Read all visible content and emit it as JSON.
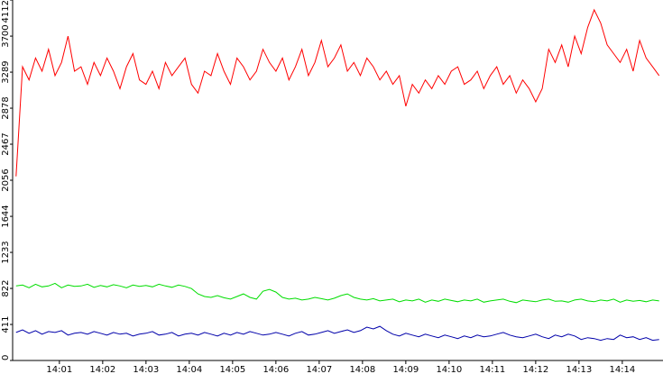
{
  "chart_data": {
    "type": "line",
    "x": [
      0,
      0.15,
      0.3,
      0.45,
      0.6,
      0.75,
      0.9,
      1.05,
      1.2,
      1.35,
      1.5,
      1.65,
      1.8,
      1.95,
      2.1,
      2.25,
      2.4,
      2.55,
      2.7,
      2.85,
      3,
      3.15,
      3.3,
      3.45,
      3.6,
      3.75,
      3.9,
      4.05,
      4.2,
      4.35,
      4.5,
      4.65,
      4.8,
      4.95,
      5.1,
      5.25,
      5.4,
      5.55,
      5.7,
      5.85,
      6,
      6.15,
      6.3,
      6.45,
      6.6,
      6.75,
      6.9,
      7.05,
      7.2,
      7.35,
      7.5,
      7.65,
      7.8,
      7.95,
      8.1,
      8.25,
      8.4,
      8.55,
      8.7,
      8.85,
      9,
      9.15,
      9.3,
      9.45,
      9.6,
      9.75,
      9.9,
      10.05,
      10.2,
      10.35,
      10.5,
      10.65,
      10.8,
      10.95,
      11.1,
      11.25,
      11.4,
      11.55,
      11.7,
      11.85,
      12,
      12.15,
      12.3,
      12.45,
      12.6,
      12.75,
      12.9,
      13.05,
      13.2,
      13.35,
      13.5,
      13.65,
      13.8,
      13.95,
      14.1,
      14.25,
      14.4,
      14.55,
      14.7,
      14.85
    ],
    "series": [
      {
        "color": "#ff0000",
        "values": [
          2100,
          3350,
          3200,
          3450,
          3300,
          3550,
          3250,
          3400,
          3700,
          3300,
          3350,
          3150,
          3400,
          3250,
          3450,
          3300,
          3100,
          3350,
          3500,
          3200,
          3150,
          3300,
          3100,
          3400,
          3250,
          3350,
          3450,
          3150,
          3050,
          3300,
          3250,
          3500,
          3300,
          3150,
          3450,
          3350,
          3200,
          3300,
          3550,
          3400,
          3300,
          3450,
          3200,
          3350,
          3550,
          3250,
          3400,
          3650,
          3350,
          3450,
          3600,
          3300,
          3400,
          3250,
          3450,
          3350,
          3200,
          3300,
          3150,
          3250,
          2900,
          3150,
          3050,
          3200,
          3100,
          3250,
          3150,
          3300,
          3350,
          3150,
          3200,
          3300,
          3100,
          3250,
          3350,
          3150,
          3250,
          3050,
          3200,
          3100,
          2950,
          3100,
          3550,
          3400,
          3600,
          3350,
          3700,
          3500,
          3800,
          4000,
          3850,
          3600,
          3500,
          3400,
          3550,
          3300,
          3650,
          3450,
          3350,
          3250
        ]
      },
      {
        "color": "#00dd00",
        "values": [
          850,
          860,
          830,
          870,
          840,
          850,
          880,
          830,
          860,
          845,
          850,
          870,
          835,
          855,
          840,
          865,
          850,
          830,
          860,
          845,
          855,
          840,
          870,
          850,
          835,
          860,
          845,
          820,
          760,
          730,
          720,
          740,
          715,
          700,
          730,
          760,
          720,
          700,
          790,
          810,
          780,
          720,
          700,
          710,
          690,
          700,
          720,
          705,
          690,
          710,
          740,
          760,
          720,
          700,
          690,
          705,
          680,
          690,
          700,
          670,
          690,
          680,
          700,
          665,
          690,
          675,
          700,
          685,
          670,
          690,
          680,
          700,
          665,
          680,
          690,
          700,
          675,
          660,
          690,
          680,
          670,
          690,
          700,
          675,
          680,
          665,
          690,
          700,
          680,
          670,
          690,
          680,
          700,
          665,
          690,
          675,
          685,
          670,
          690,
          680
        ]
      },
      {
        "color": "#0000aa",
        "values": [
          320,
          350,
          310,
          340,
          300,
          330,
          320,
          340,
          290,
          310,
          320,
          300,
          330,
          310,
          290,
          320,
          300,
          310,
          280,
          300,
          310,
          330,
          290,
          300,
          320,
          280,
          300,
          310,
          290,
          320,
          300,
          280,
          310,
          290,
          320,
          300,
          330,
          310,
          290,
          300,
          320,
          300,
          280,
          310,
          330,
          290,
          300,
          320,
          340,
          310,
          330,
          350,
          320,
          340,
          380,
          360,
          390,
          340,
          300,
          280,
          310,
          290,
          270,
          300,
          280,
          260,
          290,
          270,
          250,
          280,
          260,
          290,
          270,
          280,
          300,
          320,
          290,
          270,
          260,
          280,
          300,
          270,
          250,
          290,
          270,
          300,
          280,
          240,
          260,
          250,
          230,
          250,
          240,
          290,
          260,
          270,
          240,
          260,
          230,
          240
        ]
      }
    ],
    "xlim": [
      -0.08,
      14.94
    ],
    "xticks": [
      {
        "value": 1,
        "label": "14:01"
      },
      {
        "value": 2,
        "label": "14:02"
      },
      {
        "value": 3,
        "label": "14:03"
      },
      {
        "value": 4,
        "label": "14:04"
      },
      {
        "value": 5,
        "label": "14:05"
      },
      {
        "value": 6,
        "label": "14:06"
      },
      {
        "value": 7,
        "label": "14:07"
      },
      {
        "value": 8,
        "label": "14:08"
      },
      {
        "value": 9,
        "label": "14:09"
      },
      {
        "value": 10,
        "label": "14:10"
      },
      {
        "value": 11,
        "label": "14:11"
      },
      {
        "value": 12,
        "label": "14:12"
      },
      {
        "value": 13,
        "label": "14:13"
      },
      {
        "value": 14,
        "label": "14:14"
      }
    ],
    "ylim": [
      0,
      4112
    ],
    "yticks": [
      0,
      411,
      822,
      1233,
      1644,
      2056,
      2467,
      2878,
      3289,
      3700,
      4112
    ]
  }
}
